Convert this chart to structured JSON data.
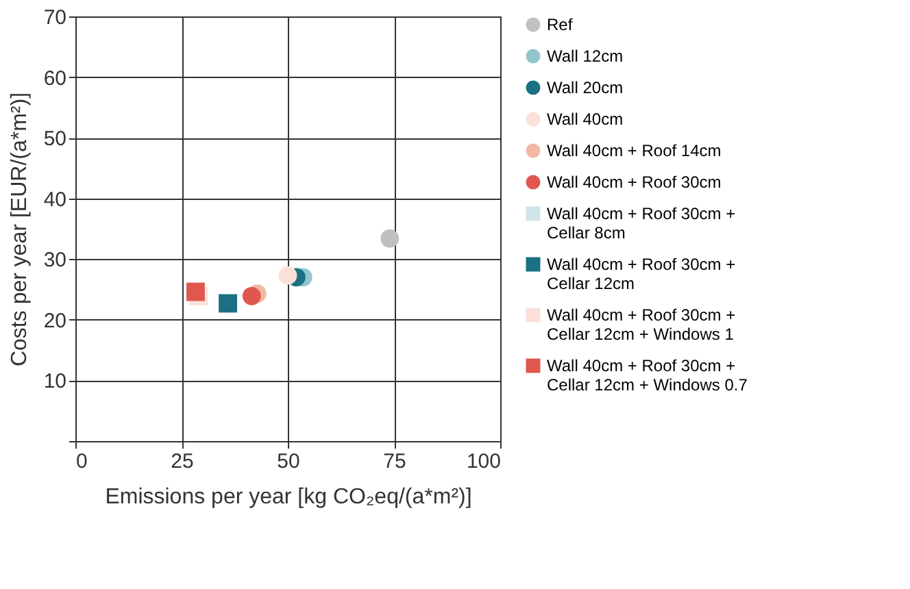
{
  "chart_data": {
    "type": "scatter",
    "xlabel": "Emissions per year [kg CO₂eq/(a*m²)]",
    "ylabel": "Costs per year [EUR/(a*m²)]",
    "xlim": [
      0,
      100
    ],
    "xticks": [
      0,
      25,
      50,
      75,
      100
    ],
    "ylim": [
      0,
      70
    ],
    "yticks": [
      {
        "value": 0,
        "label": null
      },
      10,
      20,
      30,
      40,
      50,
      60,
      70
    ],
    "grid": true,
    "legend": "right",
    "series": [
      {
        "name": "Ref",
        "color": "#c0c0c0",
        "marker": "circle",
        "x": [
          74
        ],
        "values": [
          33.4
        ]
      },
      {
        "name": "Wall 12cm",
        "color": "#92c5cc",
        "marker": "circle",
        "x": [
          53.6
        ],
        "values": [
          27
        ]
      },
      {
        "name": "Wall 20cm",
        "color": "#1b7083",
        "marker": "circle",
        "x": [
          52
        ],
        "values": [
          27
        ]
      },
      {
        "name": "Wall 40cm",
        "color": "#fbe0da",
        "marker": "circle",
        "x": [
          50
        ],
        "values": [
          27.3
        ]
      },
      {
        "name": "Wall 40cm + Roof 14cm",
        "color": "#f2b8a6",
        "marker": "circle",
        "x": [
          42.8
        ],
        "values": [
          24.3
        ]
      },
      {
        "name": "Wall 40cm + Roof 30cm",
        "color": "#e0574f",
        "marker": "circle",
        "x": [
          41.5
        ],
        "values": [
          23.9
        ]
      },
      {
        "name": "Wall 40cm + Roof 30cm + Cellar 8cm",
        "color": "#cfe3ea",
        "marker": "square",
        "x": [
          null
        ],
        "values": [
          null
        ]
      },
      {
        "name": "Wall 40cm + Roof 30cm + Cellar 12cm",
        "color": "#1b7083",
        "marker": "square",
        "x": [
          35.9
        ],
        "values": [
          22.7
        ]
      },
      {
        "name": "Wall 40cm + Roof 30cm  + Cellar 12cm + Windows 1",
        "color": "#fbe0da",
        "marker": "square",
        "x": [
          29
        ],
        "values": [
          23.9
        ]
      },
      {
        "name": "Wall 40cm + Roof 30cm  + Cellar 12cm + Windows 0.7",
        "color": "#e0574f",
        "marker": "square",
        "x": [
          28.3
        ],
        "values": [
          24.6
        ]
      }
    ]
  }
}
